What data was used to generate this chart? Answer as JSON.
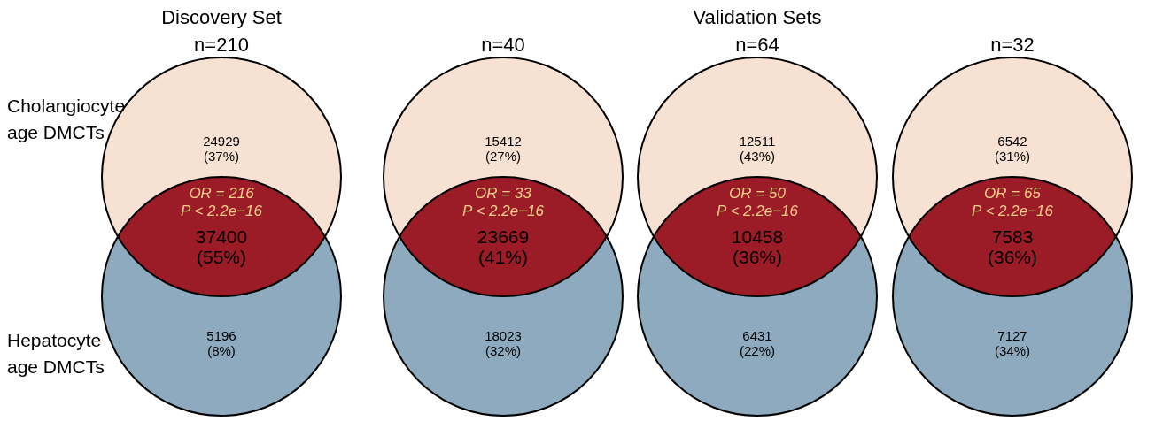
{
  "chart_data": [
    {
      "type": "other",
      "title": "Discovery Set",
      "subtitle": "n=210",
      "y_categories": [
        "Cholangiocyte age DMCTs",
        "Hepatocyte age DMCTs"
      ],
      "categories": [
        null,
        null,
        null
      ],
      "values": [
        24929,
        37400,
        5196
      ],
      "data_labels": true,
      "colors": [
        "#f7e1d3",
        "#9b1b26",
        "#8eaabf"
      ],
      "annotations": [
        "OR = 216",
        "P < 2.2e−16",
        "(37%)",
        "(55%)",
        "(8%)"
      ]
    },
    {
      "type": "other",
      "subtitle": "n=40",
      "categories": [
        null,
        null,
        null
      ],
      "values": [
        15412,
        23669,
        18023
      ],
      "data_labels": true,
      "colors": [
        "#f7e1d3",
        "#9b1b26",
        "#8eaabf"
      ],
      "annotations": [
        "OR = 33",
        "P < 2.2e−16",
        "(27%)",
        "(41%)",
        "(32%)"
      ]
    },
    {
      "type": "other",
      "title": "Validation Sets",
      "subtitle": "n=64",
      "categories": [
        null,
        null,
        null
      ],
      "values": [
        12511,
        10458,
        6431
      ],
      "data_labels": true,
      "colors": [
        "#f7e1d3",
        "#9b1b26",
        "#8eaabf"
      ],
      "annotations": [
        "OR = 50",
        "P < 2.2e−16",
        "(43%)",
        "(36%)",
        "(22%)"
      ]
    },
    {
      "type": "other",
      "subtitle": "n=32",
      "categories": [
        null,
        null,
        null
      ],
      "values": [
        6542,
        7583,
        7127
      ],
      "data_labels": true,
      "colors": [
        "#f7e1d3",
        "#9b1b26",
        "#8eaabf"
      ],
      "annotations": [
        "OR = 65",
        "P < 2.2e−16",
        "(31%)",
        "(36%)",
        "(34%)"
      ]
    }
  ]
}
